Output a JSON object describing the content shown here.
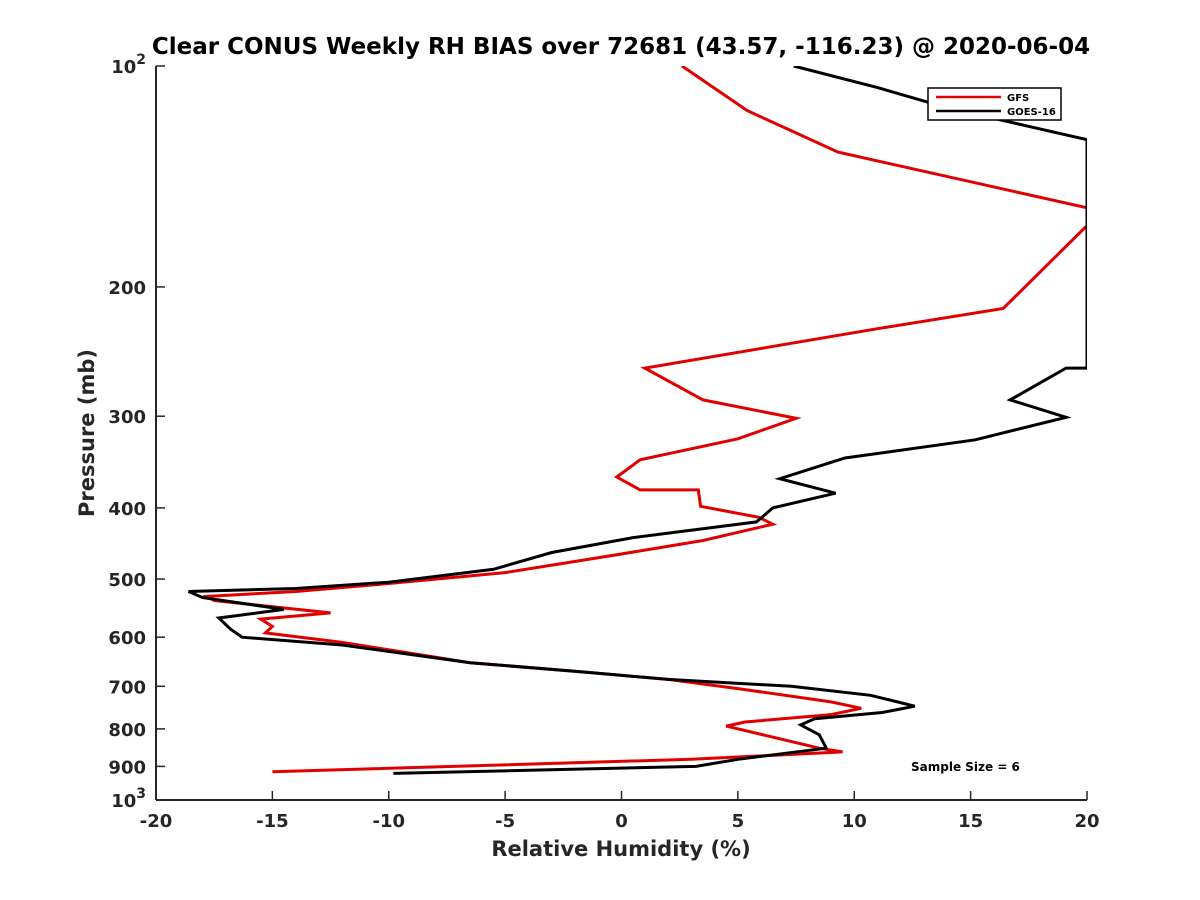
{
  "chart_data": {
    "type": "line",
    "title": "Clear CONUS Weekly RH BIAS over 72681 (43.57, -116.23) @ 2020-06-04",
    "xlabel": "Relative Humidity (%)",
    "ylabel": "Pressure (mb)",
    "xlim": [
      -20,
      20
    ],
    "ylim": [
      100,
      1000
    ],
    "yscale": "log",
    "y_reversed": true,
    "grid": false,
    "legend_position": "top-right",
    "x_ticks": [
      -20,
      -15,
      -10,
      -5,
      0,
      5,
      10,
      15,
      20
    ],
    "x_tick_labels": [
      "-20",
      "-15",
      "-10",
      "-5",
      "0",
      "5",
      "10",
      "15",
      "20"
    ],
    "y_ticks": [
      100,
      200,
      300,
      400,
      500,
      600,
      700,
      800,
      900,
      1000
    ],
    "y_tick_labels": [
      {
        "base": "10",
        "exp": "2"
      },
      {
        "base": "200",
        "exp": ""
      },
      {
        "base": "300",
        "exp": ""
      },
      {
        "base": "400",
        "exp": ""
      },
      {
        "base": "500",
        "exp": ""
      },
      {
        "base": "600",
        "exp": ""
      },
      {
        "base": "700",
        "exp": ""
      },
      {
        "base": "800",
        "exp": ""
      },
      {
        "base": "900",
        "exp": ""
      },
      {
        "base": "10",
        "exp": "3"
      }
    ],
    "series": [
      {
        "name": "GFS",
        "color": "#e00000",
        "x": [
          2.6,
          5.4,
          9.3,
          20.0,
          20.0,
          16.4,
          11.0,
          1.0,
          3.5,
          7.5,
          5.0,
          0.8,
          -0.2,
          0.8,
          3.3,
          3.4,
          5.9,
          6.5,
          3.5,
          -0.5,
          -5.0,
          -10.0,
          -14.0,
          -17.8,
          -17.5,
          -12.5,
          -15.5,
          -15.0,
          -15.3,
          -12.0,
          -6.5,
          -1.5,
          2.0,
          5.0,
          9.0,
          10.3,
          9.0,
          5.3,
          4.5,
          8.5,
          9.5,
          3.0,
          -15.0
        ],
        "y": [
          100,
          115,
          131,
          156,
          165,
          214,
          228,
          258,
          285,
          302,
          322,
          344,
          363,
          378,
          378,
          398,
          412,
          421,
          443,
          465,
          490,
          507,
          520,
          528,
          535,
          556,
          567,
          580,
          592,
          610,
          650,
          670,
          685,
          705,
          735,
          750,
          765,
          783,
          793,
          850,
          860,
          880,
          915
        ]
      },
      {
        "name": "GOES-16",
        "color": "#000000",
        "x": [
          7.4,
          11.0,
          14.0,
          20.0,
          20.0,
          19.1,
          16.7,
          19.1,
          15.2,
          9.6,
          6.8,
          9.2,
          6.5,
          5.8,
          0.5,
          -3.0,
          -5.5,
          -10.0,
          -14.0,
          -18.6,
          -18.0,
          -14.5,
          -17.3,
          -16.8,
          -16.3,
          -12.0,
          -6.5,
          -1.5,
          2.0,
          7.3,
          10.7,
          12.6,
          11.2,
          8.3,
          7.7,
          8.5,
          8.8,
          5.0,
          3.2,
          -9.8
        ],
        "y": [
          100,
          107,
          114,
          126,
          258,
          258,
          285,
          301,
          323,
          342,
          365,
          382,
          400,
          418,
          439,
          460,
          485,
          505,
          515,
          520,
          530,
          550,
          565,
          585,
          600,
          615,
          650,
          670,
          685,
          700,
          720,
          745,
          760,
          775,
          790,
          815,
          850,
          880,
          900,
          920
        ]
      }
    ],
    "annotations": [
      "Sample Size = 6"
    ]
  }
}
